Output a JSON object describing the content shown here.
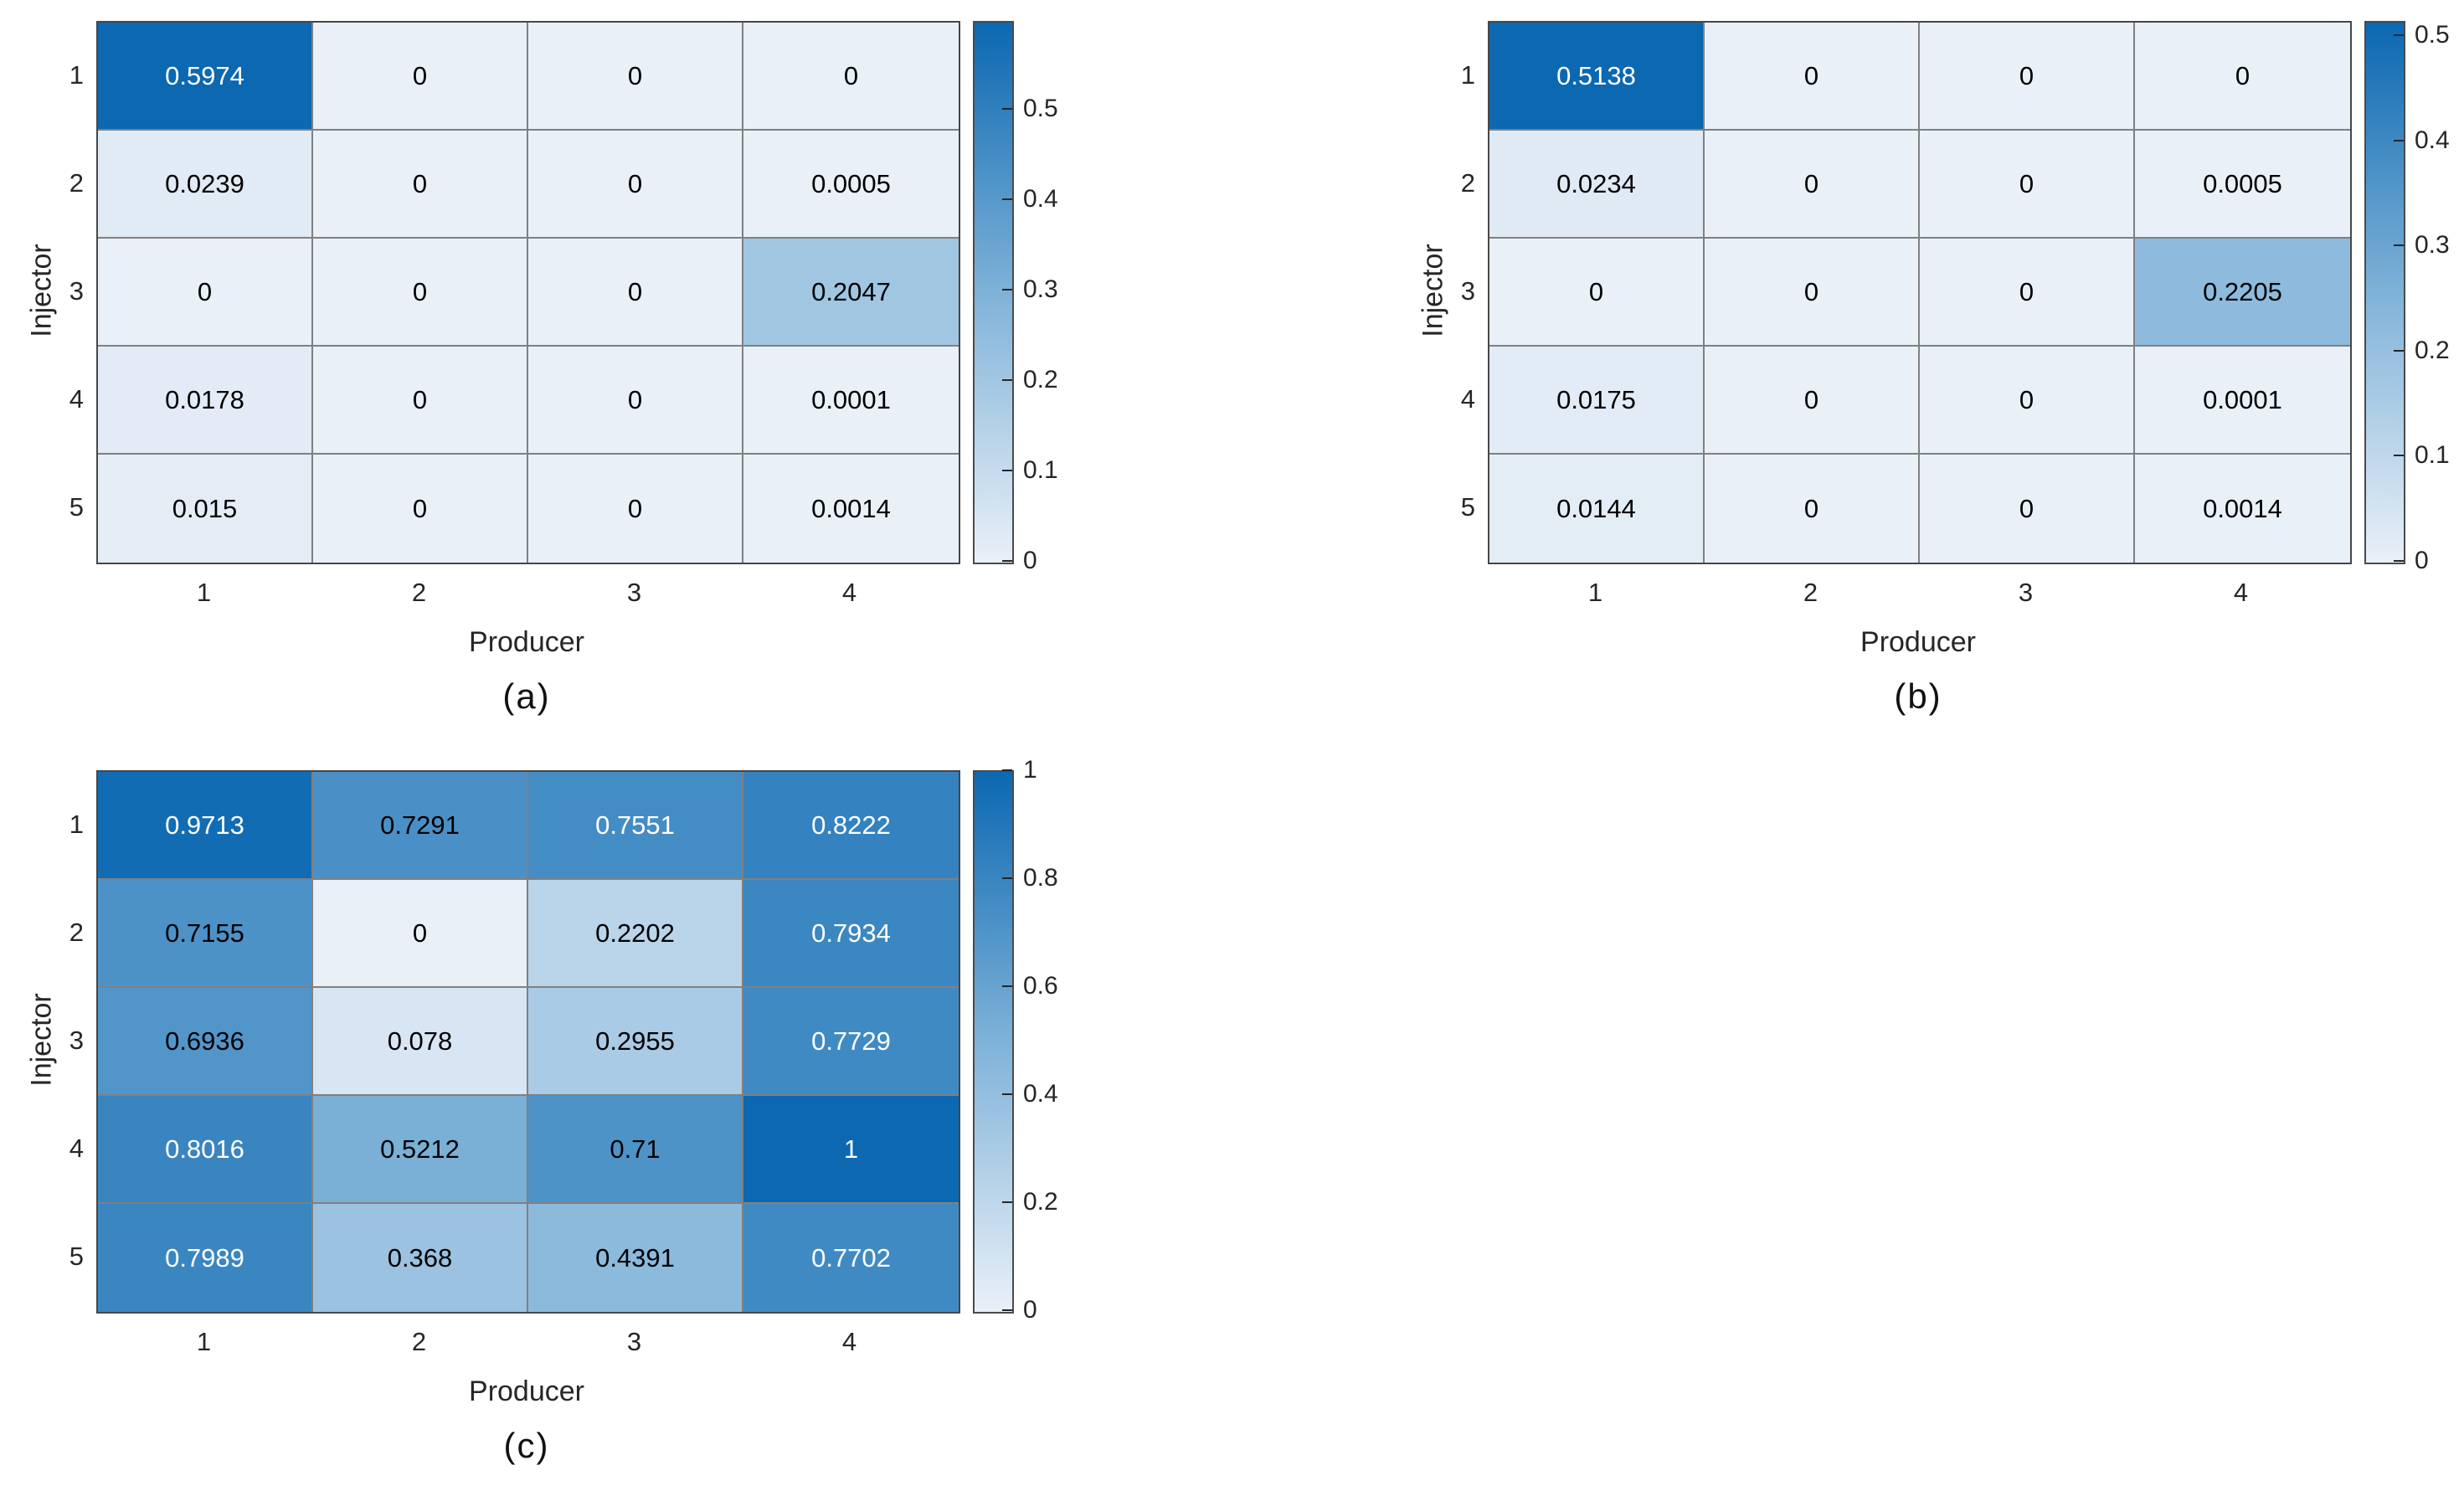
{
  "style": {
    "background": "#ffffff",
    "colormap_stops": [
      "#e9f0f8",
      "#7fb2d8",
      "#0b68b1"
    ],
    "text_flip_threshold": 0.74,
    "cell_text_dark": "#000000",
    "cell_text_light": "#ffffff",
    "gridline_color": "#808080",
    "grid_border_color": "#474747",
    "axis_label_color": "#262626"
  },
  "chart_data": [
    {
      "type": "heatmap",
      "caption": "(a)",
      "xlabel": "Producer",
      "ylabel": "Injector",
      "x_categories": [
        "1",
        "2",
        "3",
        "4"
      ],
      "y_categories": [
        "1",
        "2",
        "3",
        "4",
        "5"
      ],
      "values": [
        [
          0.5974,
          0,
          0,
          0
        ],
        [
          0.0239,
          0,
          0,
          0.0005
        ],
        [
          0,
          0,
          0,
          0.2047
        ],
        [
          0.0178,
          0,
          0,
          0.0001
        ],
        [
          0.015,
          0,
          0,
          0.0014
        ]
      ],
      "cell_labels": [
        [
          "0.5974",
          "0",
          "0",
          "0"
        ],
        [
          "0.0239",
          "0",
          "0",
          "0.0005"
        ],
        [
          "0",
          "0",
          "0",
          "0.2047"
        ],
        [
          "0.0178",
          "0",
          "0",
          "0.0001"
        ],
        [
          "0.015",
          "0",
          "0",
          "0.0014"
        ]
      ],
      "color_range": [
        0,
        0.5974
      ],
      "colorbar_ticks": [
        0,
        0.1,
        0.2,
        0.3,
        0.4,
        0.5
      ],
      "colorbar_tick_labels": [
        "0",
        "0.1",
        "0.2",
        "0.3",
        "0.4",
        "0.5"
      ],
      "colorbar_position": "right",
      "grid": true
    },
    {
      "type": "heatmap",
      "caption": "(b)",
      "xlabel": "Producer",
      "ylabel": "Injector",
      "x_categories": [
        "1",
        "2",
        "3",
        "4"
      ],
      "y_categories": [
        "1",
        "2",
        "3",
        "4",
        "5"
      ],
      "values": [
        [
          0.5138,
          0,
          0,
          0
        ],
        [
          0.0234,
          0,
          0,
          0.0005
        ],
        [
          0,
          0,
          0,
          0.2205
        ],
        [
          0.0175,
          0,
          0,
          0.0001
        ],
        [
          0.0144,
          0,
          0,
          0.0014
        ]
      ],
      "cell_labels": [
        [
          "0.5138",
          "0",
          "0",
          "0"
        ],
        [
          "0.0234",
          "0",
          "0",
          "0.0005"
        ],
        [
          "0",
          "0",
          "0",
          "0.2205"
        ],
        [
          "0.0175",
          "0",
          "0",
          "0.0001"
        ],
        [
          "0.0144",
          "0",
          "0",
          "0.0014"
        ]
      ],
      "color_range": [
        0,
        0.5138
      ],
      "colorbar_ticks": [
        0,
        0.1,
        0.2,
        0.3,
        0.4,
        0.5
      ],
      "colorbar_tick_labels": [
        "0",
        "0.1",
        "0.2",
        "0.3",
        "0.4",
        "0.5"
      ],
      "colorbar_position": "right",
      "grid": true
    },
    {
      "type": "heatmap",
      "caption": "(c)",
      "xlabel": "Producer",
      "ylabel": "Injector",
      "x_categories": [
        "1",
        "2",
        "3",
        "4"
      ],
      "y_categories": [
        "1",
        "2",
        "3",
        "4",
        "5"
      ],
      "values": [
        [
          0.9713,
          0.7291,
          0.7551,
          0.8222
        ],
        [
          0.7155,
          0,
          0.2202,
          0.7934
        ],
        [
          0.6936,
          0.078,
          0.2955,
          0.7729
        ],
        [
          0.8016,
          0.5212,
          0.71,
          1
        ],
        [
          0.7989,
          0.368,
          0.4391,
          0.7702
        ]
      ],
      "cell_labels": [
        [
          "0.9713",
          "0.7291",
          "0.7551",
          "0.8222"
        ],
        [
          "0.7155",
          "0",
          "0.2202",
          "0.7934"
        ],
        [
          "0.6936",
          "0.078",
          "0.2955",
          "0.7729"
        ],
        [
          "0.8016",
          "0.5212",
          "0.71",
          "1"
        ],
        [
          "0.7989",
          "0.368",
          "0.4391",
          "0.7702"
        ]
      ],
      "color_range": [
        0,
        1
      ],
      "colorbar_ticks": [
        0,
        0.2,
        0.4,
        0.6,
        0.8,
        1
      ],
      "colorbar_tick_labels": [
        "0",
        "0.2",
        "0.4",
        "0.6",
        "0.8",
        "1"
      ],
      "colorbar_position": "right",
      "grid": true
    }
  ]
}
